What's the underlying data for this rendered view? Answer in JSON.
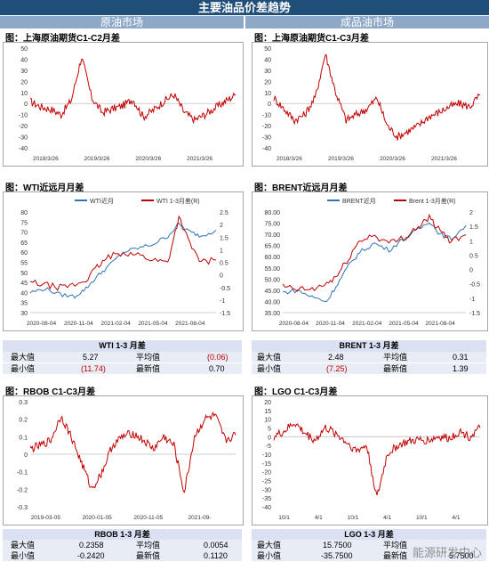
{
  "header": {
    "title": "主要油品价差趋势",
    "left_section": "原油市场",
    "right_section": "成品油市场"
  },
  "colors": {
    "red": "#c00000",
    "blue": "#2e75b6",
    "header_bg": "#1f4e79",
    "section_bg": "#8ea9c8"
  },
  "chart_data": [
    {
      "id": "sh_c1c2",
      "type": "line",
      "title": "图：上海原油期货C1-C2月差",
      "ylim": [
        -40,
        50
      ],
      "yticks": [
        "50",
        "40",
        "30",
        "20",
        "10",
        "0",
        "-10",
        "-20",
        "-30",
        "-40"
      ],
      "xticks": [
        "2018/3/26",
        "2019/3/26",
        "2020/3/26",
        "2021/3/26"
      ],
      "series": [
        {
          "color": "red",
          "x": [
            0.0,
            0.05,
            0.1,
            0.15,
            0.2,
            0.25,
            0.3,
            0.35,
            0.4,
            0.45,
            0.5,
            0.55,
            0.6,
            0.65,
            0.7,
            0.75,
            0.8,
            0.85,
            0.9,
            0.95,
            1.0
          ],
          "values": [
            2,
            -3,
            -5,
            -10,
            3,
            42,
            5,
            -8,
            -5,
            -2,
            4,
            -12,
            -6,
            2,
            8,
            -8,
            -15,
            -10,
            -4,
            2,
            8
          ]
        }
      ]
    },
    {
      "id": "sh_c1c3",
      "type": "line",
      "title": "图：上海原油期货C1-C3月差",
      "ylim": [
        -40,
        50
      ],
      "yticks": [
        "50",
        "40",
        "30",
        "20",
        "10",
        "0",
        "-10",
        "-20",
        "-30",
        "-40"
      ],
      "xticks": [
        "2018/3/26",
        "2019/3/26",
        "2020/3/26",
        "2021/3/26"
      ],
      "series": [
        {
          "color": "red",
          "x": [
            0.0,
            0.05,
            0.1,
            0.15,
            0.2,
            0.25,
            0.3,
            0.35,
            0.4,
            0.45,
            0.5,
            0.55,
            0.6,
            0.65,
            0.7,
            0.75,
            0.8,
            0.85,
            0.9,
            0.95,
            1.0
          ],
          "values": [
            5,
            -5,
            -15,
            -10,
            5,
            45,
            10,
            -15,
            -10,
            -5,
            5,
            -20,
            -30,
            -25,
            -20,
            -12,
            -8,
            -3,
            0,
            -3,
            8
          ]
        }
      ]
    },
    {
      "id": "wti",
      "type": "line",
      "title": "图：WTI近远月月差",
      "ylim": [
        30,
        80
      ],
      "y2lim": [
        -1.5,
        2.5
      ],
      "yticks": [
        "80",
        "75",
        "70",
        "65",
        "60",
        "55",
        "50",
        "45",
        "40",
        "35",
        "30"
      ],
      "y2ticks": [
        "2.5",
        "2",
        "1.5",
        "1",
        "0.5",
        "0",
        "-0.5",
        "-1",
        "-1.5"
      ],
      "xticks": [
        "2020-08-04",
        "2020-11-04",
        "2021-02-04",
        "2021-05-04",
        "2021-08-04"
      ],
      "legend": [
        "WTI近月",
        "WTI 1-3月差(R)"
      ],
      "series": [
        {
          "name": "WTI近月",
          "color": "blue",
          "axis": "left",
          "x": [
            0.0,
            0.08,
            0.16,
            0.24,
            0.3,
            0.36,
            0.42,
            0.5,
            0.58,
            0.66,
            0.74,
            0.8,
            0.86,
            0.92,
            1.0
          ],
          "values": [
            40,
            42,
            39,
            38,
            42,
            48,
            53,
            60,
            62,
            64,
            68,
            74,
            70,
            68,
            71
          ]
        },
        {
          "name": "WTI 1-3月差(R)",
          "color": "red",
          "axis": "right",
          "x": [
            0.0,
            0.08,
            0.16,
            0.24,
            0.3,
            0.36,
            0.42,
            0.5,
            0.58,
            0.66,
            0.74,
            0.8,
            0.86,
            0.92,
            1.0
          ],
          "values": [
            -0.3,
            -0.4,
            -0.5,
            -0.4,
            -0.2,
            0.3,
            0.7,
            0.9,
            0.8,
            0.6,
            0.5,
            2.3,
            1.2,
            0.5,
            0.6
          ]
        }
      ]
    },
    {
      "id": "brent",
      "type": "line",
      "title": "图：BRENT近远月月差",
      "ylim": [
        35,
        80
      ],
      "y2lim": [
        -1.5,
        2
      ],
      "yticks": [
        "80.00",
        "75.00",
        "70.00",
        "65.00",
        "60.00",
        "55.00",
        "50.00",
        "45.00",
        "40.00",
        "35.00"
      ],
      "y2ticks": [
        "2",
        "1.5",
        "1",
        "0.5",
        "0",
        "-0.5",
        "-1",
        "-1.5"
      ],
      "xticks": [
        "2020-08-04",
        "2020-11-04",
        "2021-02-04",
        "2021-05-04",
        "2021-08-04"
      ],
      "legend": [
        "BRENT近月",
        "Brent 1-3月差(R)"
      ],
      "series": [
        {
          "name": "BRENT近月",
          "color": "blue",
          "axis": "left",
          "x": [
            0.0,
            0.08,
            0.16,
            0.24,
            0.3,
            0.36,
            0.42,
            0.5,
            0.58,
            0.66,
            0.74,
            0.8,
            0.86,
            0.92,
            1.0
          ],
          "values": [
            44,
            45,
            42,
            40,
            48,
            56,
            62,
            66,
            63,
            68,
            72,
            76,
            70,
            68,
            74
          ]
        },
        {
          "name": "Brent 1-3月差(R)",
          "color": "red",
          "axis": "right",
          "x": [
            0.0,
            0.08,
            0.16,
            0.24,
            0.3,
            0.36,
            0.42,
            0.5,
            0.58,
            0.66,
            0.74,
            0.8,
            0.86,
            0.92,
            1.0
          ],
          "values": [
            -0.6,
            -0.7,
            -0.7,
            -0.5,
            -0.2,
            0.4,
            1.0,
            1.2,
            0.9,
            1.1,
            1.5,
            1.8,
            1.3,
            1.0,
            1.2
          ]
        }
      ]
    },
    {
      "id": "rbob",
      "type": "line",
      "title": "图：RBOB C1-C3月差",
      "ylim": [
        -0.3,
        0.3
      ],
      "yticks": [
        "0.3",
        "0.2",
        "0.1",
        "0",
        "-0.1",
        "-0.2",
        "-0.3"
      ],
      "xticks": [
        "2019-03-05",
        "2020-01-05",
        "2020-11-05",
        "2021-09-"
      ],
      "series": [
        {
          "color": "red",
          "x": [
            0.0,
            0.05,
            0.1,
            0.15,
            0.2,
            0.25,
            0.3,
            0.35,
            0.4,
            0.45,
            0.5,
            0.55,
            0.6,
            0.65,
            0.7,
            0.75,
            0.8,
            0.85,
            0.9,
            0.95,
            1.0
          ],
          "values": [
            0.03,
            0.05,
            0.08,
            0.22,
            0.1,
            -0.05,
            -0.2,
            -0.1,
            0.05,
            0.1,
            0.12,
            0.08,
            0.03,
            0.1,
            0.05,
            -0.22,
            0.1,
            0.2,
            0.22,
            0.08,
            0.11
          ]
        }
      ]
    },
    {
      "id": "lgo",
      "type": "line",
      "title": "图：LGO C1-C3月差",
      "ylim": [
        -40,
        20
      ],
      "yticks": [
        "20",
        "15",
        "10",
        "5",
        "0",
        "-5",
        "-10",
        "-15",
        "-20",
        "-25",
        "-30",
        "-35",
        "-40"
      ],
      "xticks": [
        "10/1",
        "4/1",
        "10/1",
        "4/1",
        "10/1",
        "4/1"
      ],
      "series": [
        {
          "color": "red",
          "x": [
            0.0,
            0.05,
            0.1,
            0.15,
            0.2,
            0.25,
            0.3,
            0.35,
            0.4,
            0.45,
            0.5,
            0.55,
            0.6,
            0.65,
            0.7,
            0.75,
            0.8,
            0.85,
            0.9,
            0.95,
            1.0
          ],
          "values": [
            0,
            3,
            8,
            2,
            -2,
            5,
            2,
            -3,
            -8,
            -5,
            -35,
            -10,
            -5,
            -3,
            -2,
            -2,
            0,
            -1,
            3,
            0,
            5
          ]
        }
      ]
    }
  ],
  "stats": {
    "wti": {
      "title": "WTI 1-3 月差",
      "max_label": "最大值",
      "max": "5.27",
      "min_label": "最小值",
      "min": "(11.74)",
      "avg_label": "平均值",
      "avg": "(0.06)",
      "latest_label": "最新值",
      "latest": "0.70"
    },
    "brent": {
      "title": "BRENT 1-3 月差",
      "max_label": "最大值",
      "max": "2.48",
      "min_label": "最小值",
      "min": "(7.25)",
      "avg_label": "平均值",
      "avg": "0.31",
      "latest_label": "最新值",
      "latest": "1.39"
    },
    "rbob": {
      "title": "RBOB 1-3 月差",
      "max_label": "最大值",
      "max": "0.2358",
      "min_label": "最小值",
      "min": "-0.2420",
      "avg_label": "平均值",
      "avg": "0.0054",
      "latest_label": "最新值",
      "latest": "0.1120"
    },
    "lgo": {
      "title": "LGO 1-3 月差",
      "max_label": "最大值",
      "max": "15.7500",
      "min_label": "最小值",
      "min": "-35.7500",
      "avg_label": "平均值",
      "avg": "",
      "latest_label": "最新值",
      "latest": "5.7500"
    }
  },
  "watermark": "能源研发中心"
}
